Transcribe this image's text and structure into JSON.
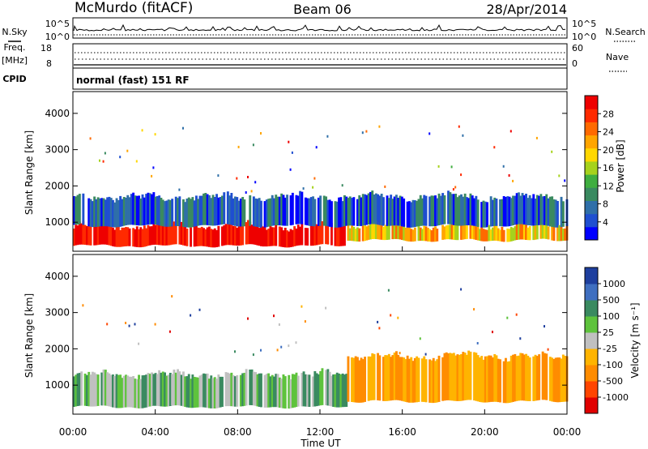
{
  "header": {
    "station": "McMurdo (fitACF)",
    "beam": "Beam 06",
    "date": "28/Apr/2014"
  },
  "noise_panel": {
    "left_label": "N.Sky",
    "right_label": "N.Search",
    "left_ticks": [
      "10^5",
      "10^0"
    ],
    "right_ticks": [
      "10^5",
      "10^0"
    ]
  },
  "freq_panel": {
    "left_label_1": "Freq.",
    "left_label_2": "[MHz]",
    "right_label": "Nave",
    "left_ticks": [
      "18",
      "8"
    ],
    "right_ticks": [
      "60",
      "0"
    ]
  },
  "cpid": {
    "label": "CPID",
    "value": "normal (fast) 151 RF"
  },
  "chart_data": [
    {
      "type": "heatmap",
      "quantity": "Power",
      "ylabel": "Slant Range [km]",
      "xlabel": "",
      "ylim": [
        200,
        4600
      ],
      "yticks": [
        1000,
        2000,
        3000,
        4000
      ],
      "xlim_hours": [
        0,
        24
      ],
      "colorbar": {
        "label": "Power [dB]",
        "ticks": [
          "4",
          "8",
          "12",
          "16",
          "20",
          "24",
          "28"
        ],
        "colors": [
          "#0000ff",
          "#1f4fd0",
          "#2f6fa8",
          "#3a8a60",
          "#3fae3f",
          "#a6d21c",
          "#ffd700",
          "#ffa500",
          "#ff6a00",
          "#ff2a00",
          "#ee0000"
        ]
      },
      "echo_regions": [
        {
          "x": [
            0.0,
            13.3
          ],
          "y": [
            350,
            900
          ],
          "level": "high"
        },
        {
          "x": [
            13.3,
            24.0
          ],
          "y": [
            500,
            900
          ],
          "level": "mid"
        },
        {
          "x": [
            0.0,
            24.0
          ],
          "y": [
            900,
            1700
          ],
          "level": "low"
        }
      ]
    },
    {
      "type": "heatmap",
      "quantity": "Velocity",
      "ylabel": "Slant Range [km]",
      "xlabel": "Time UT",
      "ylim": [
        200,
        4600
      ],
      "yticks": [
        1000,
        2000,
        3000,
        4000
      ],
      "xlim_hours": [
        0,
        24
      ],
      "colorbar": {
        "label": "Velocity [m s⁻¹]",
        "ticks": [
          "1000",
          "500",
          "100",
          "25",
          "-25",
          "-100",
          "-500",
          "-1000"
        ],
        "colors": [
          "#1e3f9e",
          "#3f6fc0",
          "#3a8a60",
          "#5ec33c",
          "#c0c0c0",
          "#ffb400",
          "#ff8c00",
          "#ff4500",
          "#e00000"
        ]
      },
      "echo_regions": [
        {
          "x": [
            0.0,
            13.3
          ],
          "y": [
            400,
            1300
          ],
          "level": "toward"
        },
        {
          "x": [
            13.3,
            24.0
          ],
          "y": [
            550,
            1800
          ],
          "level": "away"
        }
      ]
    }
  ],
  "time_axis": {
    "label": "Time UT",
    "ticks": [
      "00:00",
      "04:00",
      "08:00",
      "12:00",
      "16:00",
      "20:00",
      "00:00"
    ]
  }
}
